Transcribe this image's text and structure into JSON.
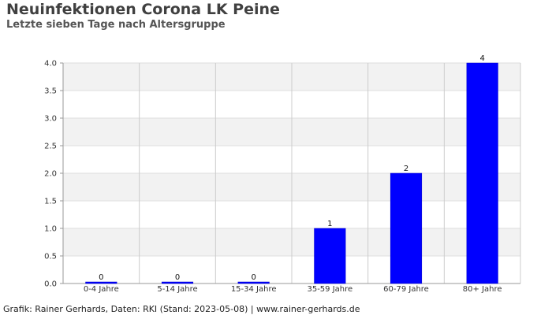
{
  "chart_data": {
    "type": "bar",
    "title": "Neuinfektionen Corona LK Peine",
    "subtitle": "Letzte sieben Tage nach Altersgruppe",
    "categories": [
      "0-4 Jahre",
      "5-14 Jahre",
      "15-34 Jahre",
      "35-59 Jahre",
      "60-79 Jahre",
      "80+ Jahre"
    ],
    "values": [
      0,
      0,
      0,
      1,
      2,
      4
    ],
    "data_labels": [
      "0",
      "0",
      "0",
      "1",
      "2",
      "4"
    ],
    "yticks": [
      "0.0",
      "0.5",
      "1.0",
      "1.5",
      "2.0",
      "2.5",
      "3.0",
      "3.5",
      "4.0"
    ],
    "ylim": [
      0,
      4
    ],
    "xlabel": "",
    "ylabel": "",
    "bar_color": "#0000ff",
    "grid": true,
    "band_color": "#f2f2f2"
  },
  "footer": "Grafik: Rainer Gerhards, Daten: RKI (Stand: 2023-05-08) | www.rainer-gerhards.de"
}
